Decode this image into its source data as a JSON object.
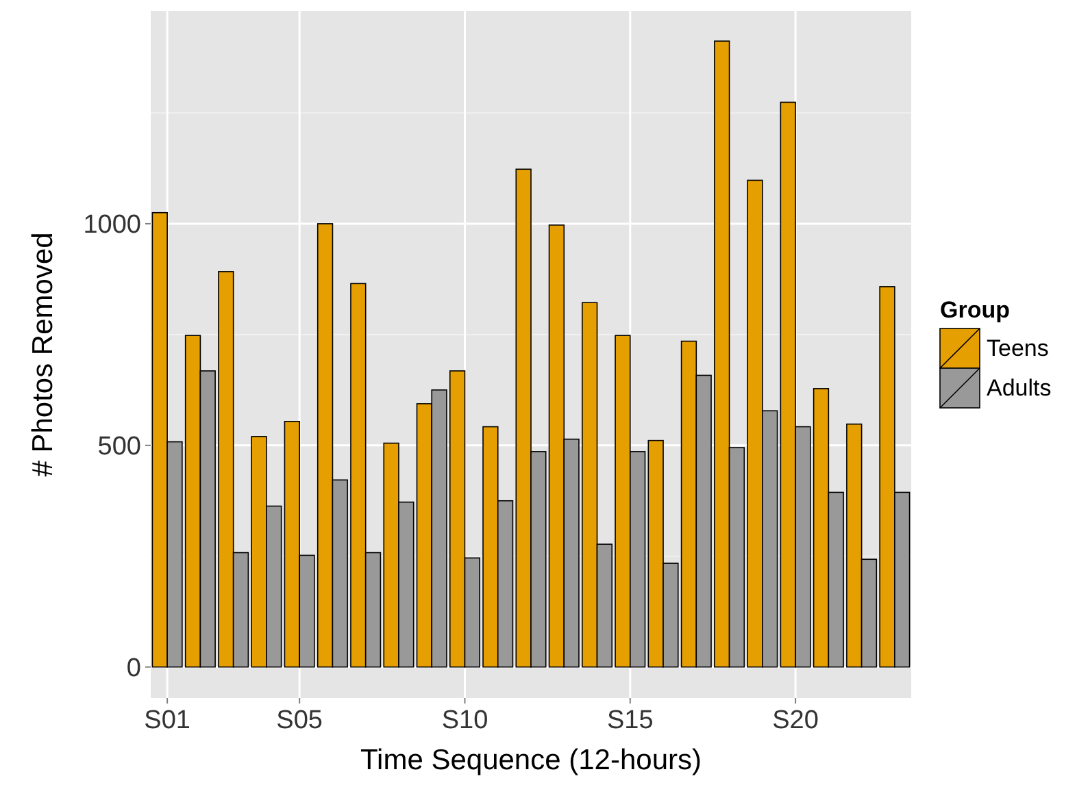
{
  "chart_data": {
    "type": "bar",
    "xlabel": "Time Sequence (12-hours)",
    "ylabel": "# Photos Removed",
    "legend_title": "Group",
    "categories": [
      "S01",
      null,
      null,
      null,
      "S05",
      null,
      null,
      null,
      null,
      "S10",
      null,
      null,
      null,
      null,
      "S15",
      null,
      null,
      null,
      null,
      "S20",
      null,
      null,
      null
    ],
    "series": [
      {
        "name": "Teens",
        "color": "#e69f00",
        "values": [
          1025,
          748,
          892,
          520,
          554,
          1000,
          865,
          505,
          594,
          668,
          542,
          1123,
          997,
          822,
          748,
          511,
          735,
          1412,
          1098,
          1274,
          628,
          548,
          858
        ]
      },
      {
        "name": "Adults",
        "color": "#999999",
        "values": [
          508,
          668,
          258,
          363,
          252,
          422,
          258,
          372,
          625,
          246,
          375,
          486,
          514,
          277,
          486,
          234,
          658,
          495,
          578,
          542,
          394,
          243,
          394
        ]
      }
    ],
    "ylim": [
      -70,
      1480
    ],
    "yticks": [
      0,
      500,
      1000
    ],
    "grid": true,
    "legend": "right"
  }
}
